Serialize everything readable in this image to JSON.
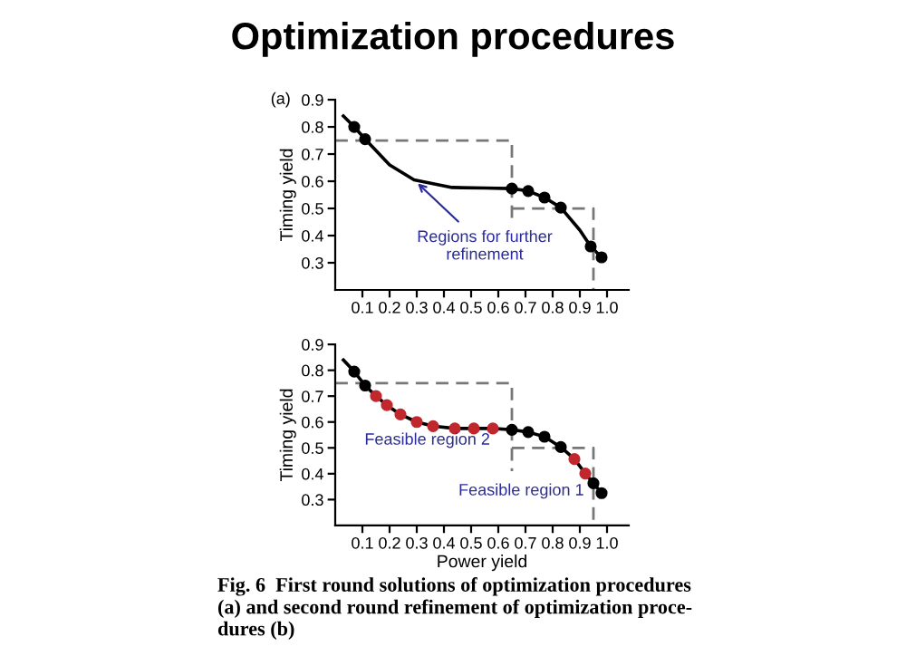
{
  "chart_data": [
    {
      "type": "line",
      "title": "Optimization procedures",
      "ylabel": "Timing yield",
      "xlim": [
        0,
        1.08
      ],
      "ylim": [
        0.2,
        0.9
      ],
      "xticks": [
        0.1,
        0.2,
        0.3,
        0.4,
        0.5,
        0.6,
        0.7,
        0.8,
        0.9,
        {
          "value": 1,
          "label": "1.0"
        }
      ],
      "yticks": [
        0.3,
        0.4,
        0.5,
        0.6,
        0.7,
        0.8,
        0.9
      ],
      "grid": false,
      "legend": false,
      "annotations": [
        "(a)",
        {
          "text": "Regions for further\nrefinement",
          "x": 0.29,
          "y": 0.605
        }
      ],
      "series": [
        {
          "color": "#000000",
          "marker": "none",
          "line_style": "solid",
          "x": [
            0.03,
            0.07,
            0.11,
            0.2,
            0.29,
            0.43,
            0.55,
            0.65,
            0.71,
            0.77,
            0.83,
            0.9,
            0.94,
            0.98
          ],
          "values": [
            0.84,
            0.8,
            0.755,
            0.66,
            0.605,
            0.577,
            0.575,
            0.573,
            0.564,
            0.54,
            0.503,
            0.42,
            0.36,
            0.32
          ]
        },
        {
          "type": "scatter",
          "color": "#000000",
          "marker": "circle",
          "x": [
            0.07,
            0.11,
            0.65,
            0.71,
            0.77,
            0.83,
            0.94,
            0.98
          ],
          "values": [
            0.8,
            0.755,
            0.573,
            0.564,
            0.54,
            0.503,
            0.36,
            0.32
          ]
        },
        {
          "color": "#777777",
          "marker": "none",
          "line_style": "dashed",
          "x": [
            0.0,
            0.65,
            0.65
          ],
          "values": [
            0.75,
            0.75,
            0.45
          ]
        },
        {
          "color": "#777777",
          "marker": "none",
          "line_style": "dashed",
          "x": [
            0.65,
            0.95,
            0.95
          ],
          "values": [
            0.5,
            0.5,
            0.2
          ]
        }
      ]
    },
    {
      "type": "line",
      "xlabel": "Power yield",
      "ylabel": "Timing yield",
      "xlim": [
        0,
        1.08
      ],
      "ylim": [
        0.2,
        0.9
      ],
      "xticks": [
        0.1,
        0.2,
        0.3,
        0.4,
        0.5,
        0.6,
        0.7,
        0.8,
        0.9,
        {
          "value": 1,
          "label": "1.0"
        }
      ],
      "yticks": [
        0.3,
        0.4,
        0.5,
        0.6,
        0.7,
        0.8,
        0.9
      ],
      "grid": false,
      "legend": false,
      "annotations": [
        "Feasible region 2",
        "Feasible region 1",
        "Fig. 6  First round solutions of optimization procedures\n(a) and second round refinement of optimization proce-\ndures (b)"
      ],
      "series": [
        {
          "color": "#000000",
          "marker": "none",
          "line_style": "solid",
          "x": [
            0.03,
            0.07,
            0.11,
            0.15,
            0.19,
            0.24,
            0.3,
            0.36,
            0.44,
            0.51,
            0.58,
            0.65,
            0.71,
            0.77,
            0.83,
            0.88,
            0.92,
            0.95,
            0.98
          ],
          "values": [
            0.84,
            0.795,
            0.741,
            0.7,
            0.665,
            0.629,
            0.6,
            0.584,
            0.575,
            0.575,
            0.575,
            0.57,
            0.561,
            0.543,
            0.503,
            0.457,
            0.401,
            0.363,
            0.325
          ]
        },
        {
          "type": "scatter",
          "color": "#000000",
          "marker": "circle",
          "x": [
            0.07,
            0.11,
            0.65,
            0.71,
            0.77,
            0.83,
            0.95,
            0.98
          ],
          "values": [
            0.795,
            0.741,
            0.57,
            0.561,
            0.543,
            0.503,
            0.363,
            0.325
          ]
        },
        {
          "type": "scatter",
          "color": "#c0282d",
          "marker": "circle",
          "x": [
            0.15,
            0.19,
            0.24,
            0.3,
            0.36,
            0.44,
            0.51,
            0.58,
            0.88,
            0.92
          ],
          "values": [
            0.7,
            0.665,
            0.629,
            0.6,
            0.584,
            0.575,
            0.575,
            0.575,
            0.457,
            0.401
          ]
        },
        {
          "color": "#777777",
          "marker": "none",
          "line_style": "dashed",
          "x": [
            0.0,
            0.65,
            0.65
          ],
          "values": [
            0.75,
            0.75,
            0.41
          ]
        },
        {
          "color": "#777777",
          "marker": "none",
          "line_style": "dashed",
          "x": [
            0.65,
            0.95,
            0.95
          ],
          "values": [
            0.5,
            0.5,
            0.2
          ]
        }
      ]
    }
  ]
}
